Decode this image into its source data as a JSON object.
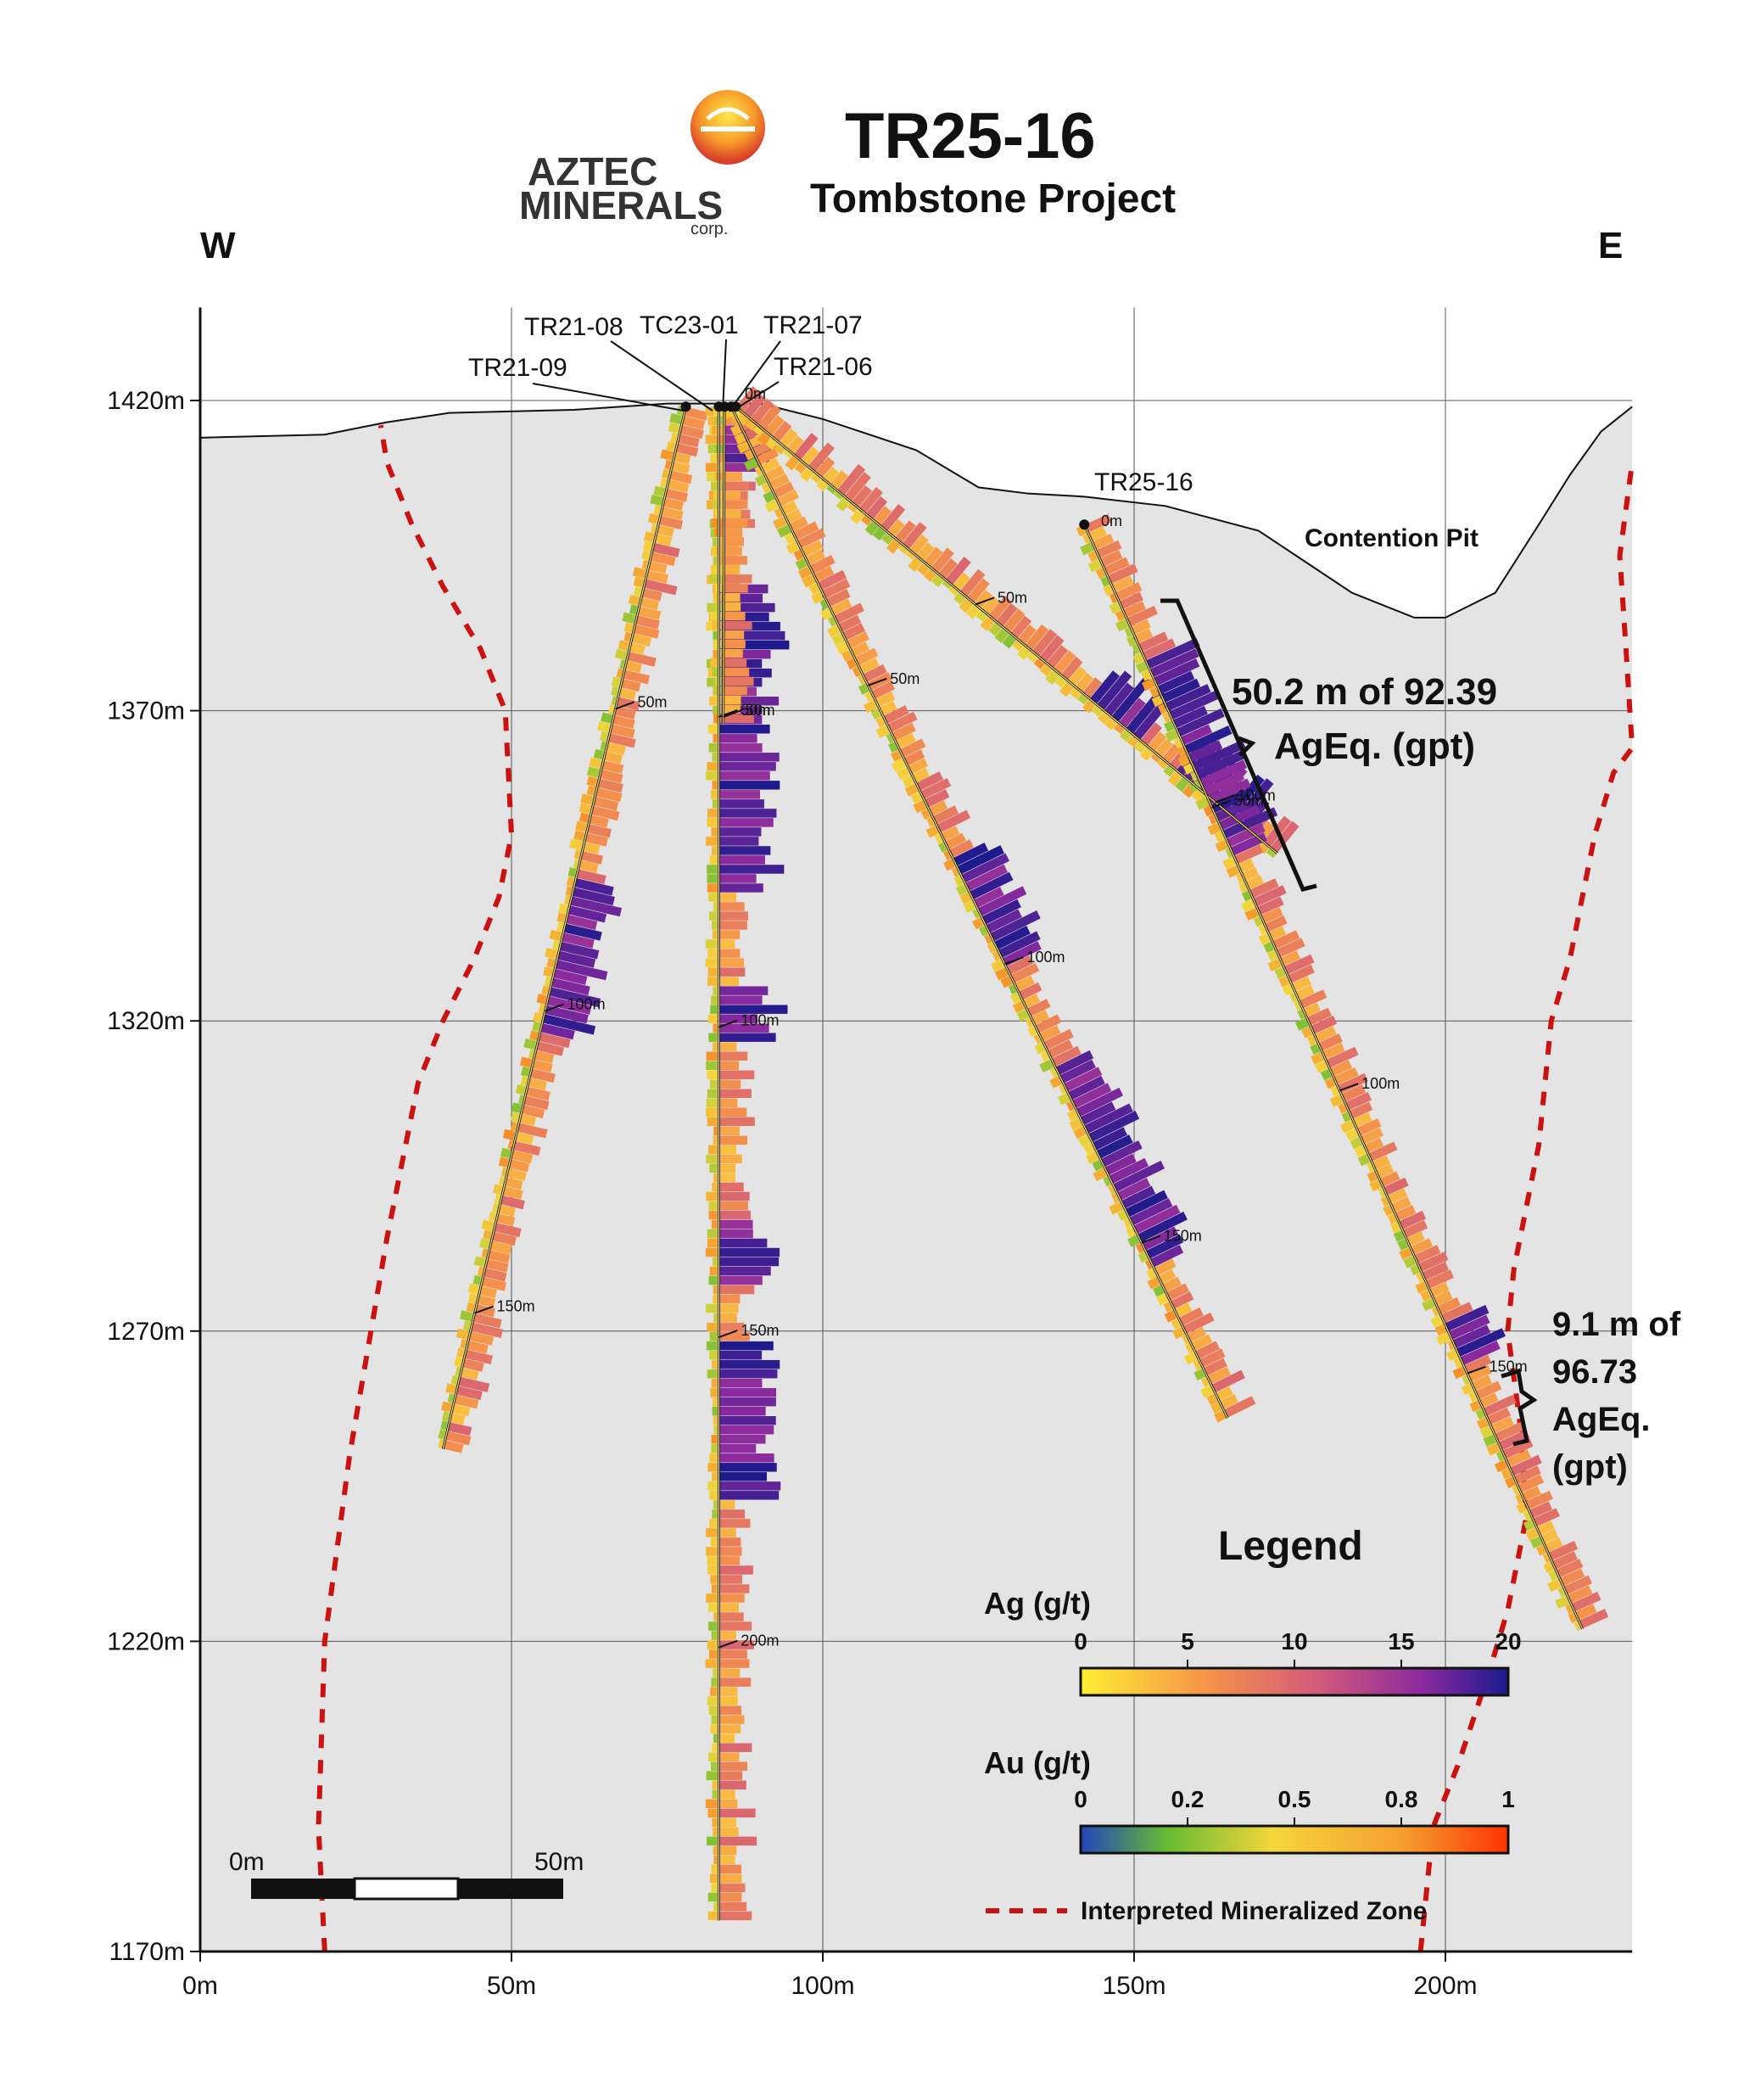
{
  "header": {
    "title": "TR25-16",
    "subtitle": "Tombstone Project",
    "logo_line1": "AZTEC",
    "logo_line2": "MINERALS",
    "logo_line3": "corp.",
    "west": "W",
    "east": "E"
  },
  "axes": {
    "x_ticks": [
      {
        "value": 0,
        "label": "0m"
      },
      {
        "value": 50,
        "label": "50m"
      },
      {
        "value": 100,
        "label": "100m"
      },
      {
        "value": 150,
        "label": "150m"
      },
      {
        "value": 200,
        "label": "200m"
      }
    ],
    "y_ticks": [
      {
        "value": 1420,
        "label": "1420m"
      },
      {
        "value": 1370,
        "label": "1370m"
      },
      {
        "value": 1320,
        "label": "1320m"
      },
      {
        "value": 1270,
        "label": "1270m"
      },
      {
        "value": 1220,
        "label": "1220m"
      },
      {
        "value": 1170,
        "label": "1170m"
      }
    ],
    "x_range": [
      0,
      230
    ],
    "y_range": [
      1170,
      1435
    ]
  },
  "surface": [
    [
      0,
      1414
    ],
    [
      20,
      1414.5
    ],
    [
      30,
      1416.5
    ],
    [
      40,
      1418
    ],
    [
      60,
      1418.5
    ],
    [
      75,
      1419.5
    ],
    [
      90,
      1419.5
    ],
    [
      100,
      1417
    ],
    [
      115,
      1412
    ],
    [
      125,
      1406
    ],
    [
      133,
      1405
    ],
    [
      142,
      1404.5
    ],
    [
      155,
      1403
    ],
    [
      170,
      1399
    ],
    [
      185,
      1389
    ],
    [
      195,
      1385
    ],
    [
      200,
      1385
    ],
    [
      208,
      1389
    ],
    [
      215,
      1400
    ],
    [
      220,
      1408
    ],
    [
      225,
      1415
    ],
    [
      230,
      1419
    ]
  ],
  "zone_left": [
    [
      20,
      1170
    ],
    [
      19,
      1190
    ],
    [
      20,
      1220
    ],
    [
      24,
      1250
    ],
    [
      30,
      1285
    ],
    [
      35,
      1310
    ],
    [
      39,
      1320
    ],
    [
      44,
      1330
    ],
    [
      48,
      1340
    ],
    [
      50,
      1350
    ],
    [
      49,
      1370
    ],
    [
      45,
      1380
    ],
    [
      39,
      1390
    ],
    [
      34,
      1400
    ],
    [
      30,
      1410
    ],
    [
      29,
      1416
    ]
  ],
  "zone_right": [
    [
      196,
      1170
    ],
    [
      198,
      1190
    ],
    [
      202,
      1200
    ],
    [
      207,
      1215
    ],
    [
      210,
      1225
    ],
    [
      213,
      1240
    ],
    [
      212,
      1255
    ],
    [
      210,
      1270
    ],
    [
      211,
      1280
    ],
    [
      213,
      1290
    ],
    [
      215,
      1300
    ],
    [
      216,
      1310
    ],
    [
      217,
      1320
    ],
    [
      220,
      1330
    ],
    [
      222,
      1340
    ],
    [
      224,
      1350
    ],
    [
      227,
      1360
    ],
    [
      230,
      1364
    ],
    [
      229,
      1380
    ],
    [
      228,
      1395
    ],
    [
      230,
      1410
    ]
  ],
  "holes": [
    {
      "name": "TR21-09",
      "collar": [
        78,
        1419
      ],
      "end": [
        39,
        1251
      ],
      "ticks": [
        {
          "d": 50,
          "label": "50m"
        },
        {
          "d": 100,
          "label": "100m"
        },
        {
          "d": 150,
          "label": "150m"
        }
      ]
    },
    {
      "name": "TR21-08",
      "collar": [
        83.3,
        1419
      ],
      "end": [
        83.3,
        1175
      ],
      "ticks": [
        {
          "d": 50,
          "label": "50m"
        },
        {
          "d": 100,
          "label": "100m"
        },
        {
          "d": 150,
          "label": "150m"
        },
        {
          "d": 200,
          "label": "200m"
        }
      ]
    },
    {
      "name": "TC23-01",
      "collar": [
        84.2,
        1419
      ],
      "end": [
        84,
        1368
      ],
      "ticks": [
        {
          "d": 50,
          "label": "50m"
        }
      ]
    },
    {
      "name": "TR21-07",
      "collar": [
        85.3,
        1419
      ],
      "end": [
        165,
        1256
      ],
      "ticks": [
        {
          "d": 50,
          "label": "50m"
        },
        {
          "d": 100,
          "label": "100m"
        },
        {
          "d": 150,
          "label": "150m"
        }
      ]
    },
    {
      "name": "TR21-06",
      "collar": [
        86,
        1419
      ],
      "end": [
        173,
        1347
      ],
      "ticks": [
        {
          "d": 50,
          "label": "50m"
        },
        {
          "d": 100,
          "label": "100m"
        }
      ]
    },
    {
      "name": "TR25-16",
      "collar": [
        142,
        1400
      ],
      "end": [
        222,
        1222
      ],
      "ticks": [
        {
          "d": 50,
          "label": "50m"
        },
        {
          "d": 100,
          "label": "100m"
        },
        {
          "d": 150,
          "label": "150m"
        }
      ]
    }
  ],
  "labels": {
    "tr21_09": "TR21-09",
    "tr21_08": "TR21-08",
    "tc23_01": "TC23-01",
    "tr21_07": "TR21-07",
    "tr21_06": "TR21-06",
    "tr25_16": "TR25-16",
    "collar_depth": "0m",
    "pit": "Contention Pit"
  },
  "callouts": {
    "a_line1": "50.2 m of 92.39",
    "a_line2": "AgEq. (gpt)",
    "b_line1": "9.1 m of",
    "b_line2": "96.73",
    "b_line3": "AgEq.",
    "b_line4": "(gpt)"
  },
  "legend": {
    "title": "Legend",
    "ag_title": "Ag (g/t)",
    "ag_ticks": [
      "0",
      "5",
      "10",
      "15",
      "20"
    ],
    "au_title": "Au (g/t)",
    "au_ticks": [
      "0",
      "0.2",
      "0.5",
      "0.8",
      "1"
    ],
    "zone_label": "Interpreted Mineralized Zone"
  },
  "scalebar": {
    "start": "0m",
    "end": "50m"
  },
  "colors": {
    "ag_low": "#ffee33",
    "ag_mid": "#e8785a",
    "ag_high": "#1a1a8c",
    "au_low": "#2244bb",
    "au_mid": "#f5c43a",
    "au_high": "#ff3300",
    "zone": "#cc1111",
    "fill": "#e4e4e4"
  }
}
